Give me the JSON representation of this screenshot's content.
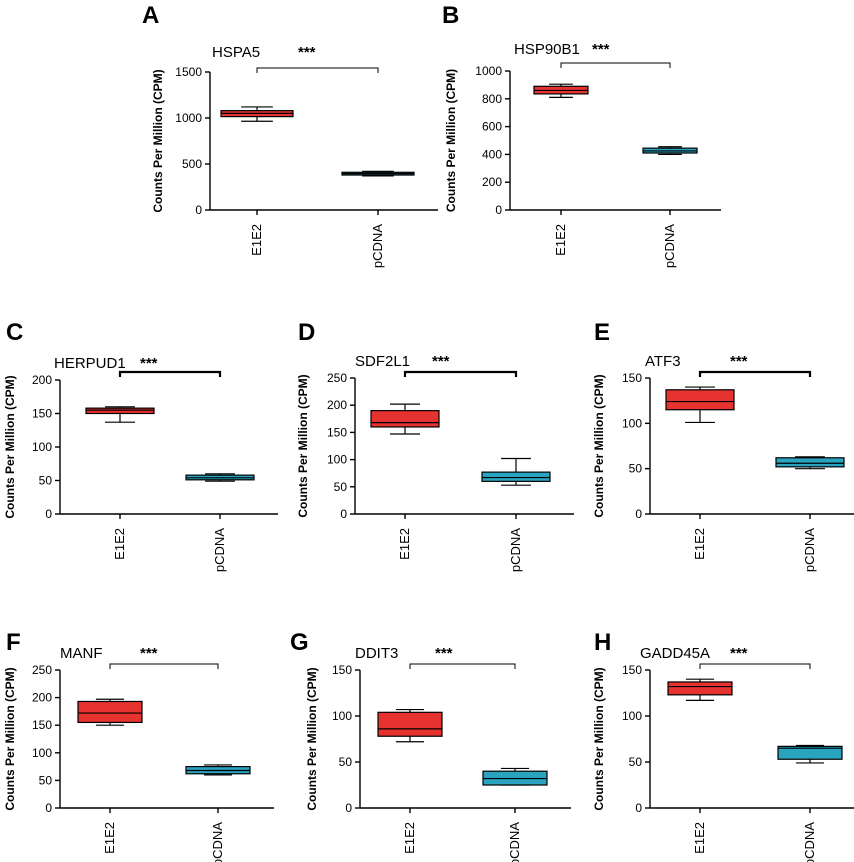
{
  "figure": {
    "y_axis_label": "Counts Per Million (CPM)",
    "significance": "***",
    "colors": {
      "E1E2": "#e63330",
      "pCDNA": "#2aa3bf"
    }
  },
  "chart_data": [
    {
      "type": "box",
      "panel": "A",
      "title": "HSPA5",
      "significance": "***",
      "ylabel": "Counts Per Million (CPM)",
      "ylim": [
        0,
        1500
      ],
      "yticks": [
        0,
        500,
        1000,
        1500
      ],
      "categories": [
        "E1E2",
        "pCDNA"
      ],
      "boxes": [
        {
          "category": "E1E2",
          "min": 965,
          "q1": 1015,
          "median": 1050,
          "q3": 1080,
          "max": 1120
        },
        {
          "category": "pCDNA",
          "min": 370,
          "q1": 380,
          "median": 395,
          "q3": 410,
          "max": 420
        }
      ]
    },
    {
      "type": "box",
      "panel": "B",
      "title": "HSP90B1",
      "significance": "***",
      "ylabel": "Counts Per Million (CPM)",
      "ylim": [
        0,
        1000
      ],
      "yticks": [
        0,
        200,
        400,
        600,
        800,
        1000
      ],
      "categories": [
        "E1E2",
        "pCDNA"
      ],
      "boxes": [
        {
          "category": "E1E2",
          "min": 810,
          "q1": 835,
          "median": 860,
          "q3": 890,
          "max": 905
        },
        {
          "category": "pCDNA",
          "min": 400,
          "q1": 410,
          "median": 425,
          "q3": 445,
          "max": 455
        }
      ]
    },
    {
      "type": "box",
      "panel": "C",
      "title": "HERPUD1",
      "significance": "***",
      "ylabel": "Counts Per Million (CPM)",
      "ylim": [
        0,
        200
      ],
      "yticks": [
        0,
        50,
        100,
        150,
        200
      ],
      "categories": [
        "E1E2",
        "pCDNA"
      ],
      "boxes": [
        {
          "category": "E1E2",
          "min": 137,
          "q1": 150,
          "median": 155,
          "q3": 158,
          "max": 160
        },
        {
          "category": "pCDNA",
          "min": 49,
          "q1": 51,
          "median": 54,
          "q3": 58,
          "max": 60
        }
      ]
    },
    {
      "type": "box",
      "panel": "D",
      "title": "SDF2L1",
      "significance": "***",
      "ylabel": "Counts Per Million (CPM)",
      "ylim": [
        0,
        250
      ],
      "yticks": [
        0,
        50,
        100,
        150,
        200,
        250
      ],
      "categories": [
        "E1E2",
        "pCDNA"
      ],
      "boxes": [
        {
          "category": "E1E2",
          "min": 147,
          "q1": 160,
          "median": 168,
          "q3": 190,
          "max": 202
        },
        {
          "category": "pCDNA",
          "min": 53,
          "q1": 60,
          "median": 67,
          "q3": 77,
          "max": 102
        }
      ]
    },
    {
      "type": "box",
      "panel": "E",
      "title": "ATF3",
      "significance": "***",
      "ylabel": "Counts Per Million (CPM)",
      "ylim": [
        0,
        150
      ],
      "yticks": [
        0,
        50,
        100,
        150
      ],
      "categories": [
        "E1E2",
        "pCDNA"
      ],
      "boxes": [
        {
          "category": "E1E2",
          "min": 101,
          "q1": 115,
          "median": 124,
          "q3": 137,
          "max": 140
        },
        {
          "category": "pCDNA",
          "min": 50,
          "q1": 52,
          "median": 56,
          "q3": 62,
          "max": 63
        }
      ]
    },
    {
      "type": "box",
      "panel": "F",
      "title": "MANF",
      "significance": "***",
      "ylabel": "Counts Per Million (CPM)",
      "ylim": [
        0,
        250
      ],
      "yticks": [
        0,
        50,
        100,
        150,
        200,
        250
      ],
      "categories": [
        "E1E2",
        "pCDNA"
      ],
      "boxes": [
        {
          "category": "E1E2",
          "min": 150,
          "q1": 155,
          "median": 172,
          "q3": 193,
          "max": 197
        },
        {
          "category": "pCDNA",
          "min": 60,
          "q1": 62,
          "median": 68,
          "q3": 75,
          "max": 78
        }
      ]
    },
    {
      "type": "box",
      "panel": "G",
      "title": "DDIT3",
      "significance": "***",
      "ylabel": "Counts Per Million (CPM)",
      "ylim": [
        0,
        150
      ],
      "yticks": [
        0,
        50,
        100,
        150
      ],
      "categories": [
        "E1E2",
        "pCDNA"
      ],
      "boxes": [
        {
          "category": "E1E2",
          "min": 72,
          "q1": 78,
          "median": 86,
          "q3": 104,
          "max": 107
        },
        {
          "category": "pCDNA",
          "min": 25,
          "q1": 25,
          "median": 32,
          "q3": 40,
          "max": 43
        }
      ]
    },
    {
      "type": "box",
      "panel": "H",
      "title": "GADD45A",
      "significance": "***",
      "ylabel": "Counts Per Million (CPM)",
      "ylim": [
        0,
        150
      ],
      "yticks": [
        0,
        50,
        100,
        150
      ],
      "categories": [
        "E1E2",
        "pCDNA"
      ],
      "boxes": [
        {
          "category": "E1E2",
          "min": 117,
          "q1": 123,
          "median": 132,
          "q3": 137,
          "max": 140
        },
        {
          "category": "pCDNA",
          "min": 49,
          "q1": 53,
          "median": 65,
          "q3": 67,
          "max": 68
        }
      ]
    }
  ]
}
